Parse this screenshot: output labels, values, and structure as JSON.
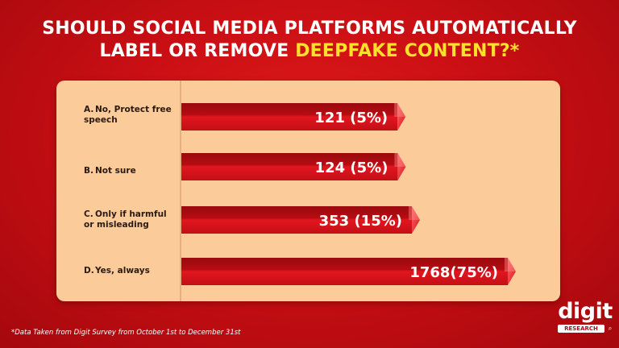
{
  "title": {
    "line1": "SHOULD SOCIAL MEDIA PLATFORMS AUTOMATICALLY",
    "line2_prefix": "LABEL OR REMOVE ",
    "line2_highlight": "DEEPFAKE CONTENT?*"
  },
  "colors": {
    "background": "#c90f14",
    "highlight": "#ffe12b",
    "panel": "#fccb9a",
    "bar": "#d8121b"
  },
  "footnote": "*Data Taken from Digit Survey from October 1st to December 31st",
  "logo": {
    "main": "digit",
    "sub": "RESEARCH"
  },
  "chart_data": {
    "type": "bar",
    "orientation": "horizontal",
    "categories": [
      {
        "letter": "A.",
        "text": "No, Protect free speech"
      },
      {
        "letter": "B.",
        "text": "Not sure"
      },
      {
        "letter": "C.",
        "text": "Only if harmful or misleading"
      },
      {
        "letter": "D.",
        "text": "Yes, always"
      }
    ],
    "values": [
      121,
      124,
      353,
      1768
    ],
    "data_labels": [
      "121 (5%)",
      "124 (5%)",
      "353 (15%)",
      "1768(75%)"
    ],
    "percent": [
      5,
      5,
      15,
      75
    ],
    "title": "SHOULD SOCIAL MEDIA PLATFORMS AUTOMATICALLY LABEL OR REMOVE DEEPFAKE CONTENT?*",
    "xlabel": "",
    "ylabel": "",
    "grid": false,
    "legend": "none"
  }
}
